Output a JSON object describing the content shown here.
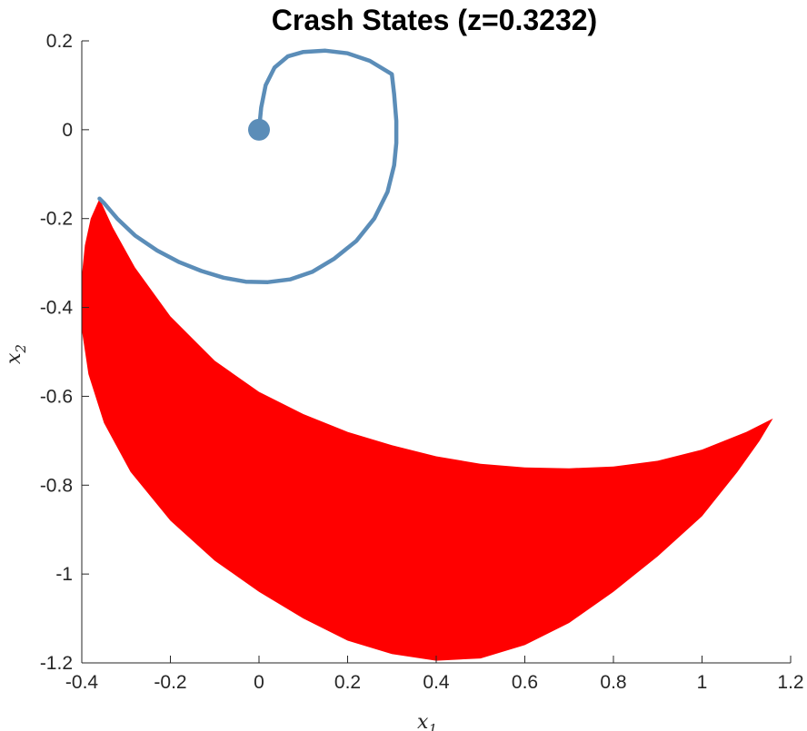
{
  "chart_data": {
    "type": "area",
    "title": "Crash States (z=0.3232)",
    "xlabel": "x",
    "xlabel_sub": "1",
    "ylabel": "x",
    "ylabel_sub": "2",
    "xlim": [
      -0.4,
      1.2
    ],
    "ylim": [
      -1.2,
      0.2
    ],
    "xticks": [
      -0.4,
      -0.2,
      0,
      0.2,
      0.4,
      0.6,
      0.8,
      1,
      1.2
    ],
    "xtick_labels": [
      "-0.4",
      "-0.2",
      "0",
      "0.2",
      "0.4",
      "0.6",
      "0.8",
      "1",
      "1.2"
    ],
    "yticks": [
      0.2,
      0,
      -0.2,
      -0.4,
      -0.6,
      -0.8,
      -1,
      -1.2
    ],
    "ytick_labels": [
      "0.2",
      "0",
      "-0.2",
      "-0.4",
      "-0.6",
      "-0.8",
      "-1",
      "-1.2"
    ],
    "grid": false,
    "colors": {
      "region": "#ff0000",
      "trajectory": "#5b8db8"
    },
    "crash_region": {
      "outer_boundary": [
        [
          -0.36,
          -0.155
        ],
        [
          -0.38,
          -0.2
        ],
        [
          -0.393,
          -0.26
        ],
        [
          -0.4,
          -0.33
        ],
        [
          -0.4,
          -0.45
        ],
        [
          -0.385,
          -0.55
        ],
        [
          -0.35,
          -0.66
        ],
        [
          -0.29,
          -0.77
        ],
        [
          -0.2,
          -0.88
        ],
        [
          -0.1,
          -0.97
        ],
        [
          0.0,
          -1.04
        ],
        [
          0.1,
          -1.1
        ],
        [
          0.2,
          -1.15
        ],
        [
          0.3,
          -1.18
        ],
        [
          0.4,
          -1.195
        ],
        [
          0.5,
          -1.19
        ],
        [
          0.6,
          -1.16
        ],
        [
          0.7,
          -1.11
        ],
        [
          0.8,
          -1.04
        ],
        [
          0.9,
          -0.96
        ],
        [
          1.0,
          -0.87
        ],
        [
          1.08,
          -0.77
        ],
        [
          1.13,
          -0.7
        ],
        [
          1.16,
          -0.65
        ]
      ],
      "inner_boundary": [
        [
          1.16,
          -0.65
        ],
        [
          1.1,
          -0.68
        ],
        [
          1.0,
          -0.72
        ],
        [
          0.9,
          -0.745
        ],
        [
          0.8,
          -0.758
        ],
        [
          0.7,
          -0.762
        ],
        [
          0.6,
          -0.76
        ],
        [
          0.5,
          -0.752
        ],
        [
          0.4,
          -0.735
        ],
        [
          0.3,
          -0.71
        ],
        [
          0.2,
          -0.68
        ],
        [
          0.1,
          -0.64
        ],
        [
          0.0,
          -0.59
        ],
        [
          -0.1,
          -0.52
        ],
        [
          -0.2,
          -0.42
        ],
        [
          -0.28,
          -0.31
        ],
        [
          -0.33,
          -0.22
        ],
        [
          -0.36,
          -0.155
        ]
      ]
    },
    "trajectory": {
      "start_marker": [
        0,
        0
      ],
      "points": [
        [
          0,
          0
        ],
        [
          0.005,
          0.05
        ],
        [
          0.015,
          0.1
        ],
        [
          0.035,
          0.14
        ],
        [
          0.065,
          0.165
        ],
        [
          0.1,
          0.175
        ],
        [
          0.15,
          0.178
        ],
        [
          0.2,
          0.172
        ],
        [
          0.25,
          0.155
        ],
        [
          0.3,
          0.125
        ],
        [
          0.305,
          0.08
        ],
        [
          0.31,
          0.02
        ],
        [
          0.31,
          -0.03
        ],
        [
          0.305,
          -0.08
        ],
        [
          0.29,
          -0.14
        ],
        [
          0.26,
          -0.2
        ],
        [
          0.22,
          -0.25
        ],
        [
          0.17,
          -0.29
        ],
        [
          0.12,
          -0.32
        ],
        [
          0.07,
          -0.337
        ],
        [
          0.02,
          -0.343
        ],
        [
          -0.03,
          -0.342
        ],
        [
          -0.08,
          -0.333
        ],
        [
          -0.13,
          -0.318
        ],
        [
          -0.18,
          -0.298
        ],
        [
          -0.23,
          -0.272
        ],
        [
          -0.28,
          -0.238
        ],
        [
          -0.32,
          -0.2
        ],
        [
          -0.35,
          -0.165
        ],
        [
          -0.36,
          -0.155
        ]
      ]
    }
  }
}
